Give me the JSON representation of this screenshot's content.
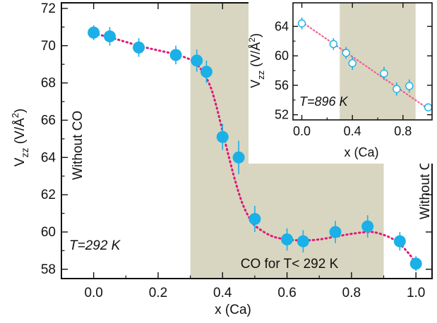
{
  "colors": {
    "shade": "#d8d6c0",
    "marker": "#1ab0e8",
    "fit": "#e0187a",
    "inset_fit": "#f06090",
    "axis": "#111111"
  },
  "chart_data": [
    {
      "type": "scatter",
      "xlabel": "x (Ca)",
      "ylabel_main": "V",
      "ylabel_sub": "zz",
      "ylabel_unit_pre": " (V/Å",
      "ylabel_unit_sup": "2",
      "ylabel_unit_post": ")",
      "xlim": [
        -0.1,
        1.05
      ],
      "ylim": [
        57.5,
        72.3
      ],
      "xticks": [
        0.0,
        0.2,
        0.4,
        0.6,
        0.8,
        1.0
      ],
      "xtick_labels": [
        "0.0",
        "0.2",
        "0.4",
        "0.6",
        "0.8",
        "1.0"
      ],
      "yticks": [
        58,
        60,
        62,
        64,
        66,
        68,
        70,
        72
      ],
      "ytick_labels": [
        "58",
        "60",
        "62",
        "64",
        "66",
        "68",
        "70",
        "72"
      ],
      "shaded_region": [
        0.3,
        0.9
      ],
      "points": [
        {
          "x": 0.0,
          "y": 70.7,
          "err": 0.4
        },
        {
          "x": 0.05,
          "y": 70.5,
          "err": 0.5
        },
        {
          "x": 0.14,
          "y": 69.9,
          "err": 0.5
        },
        {
          "x": 0.255,
          "y": 69.5,
          "err": 0.5
        },
        {
          "x": 0.32,
          "y": 69.2,
          "err": 0.6
        },
        {
          "x": 0.35,
          "y": 68.6,
          "err": 0.6
        },
        {
          "x": 0.4,
          "y": 65.1,
          "err": 0.7
        },
        {
          "x": 0.45,
          "y": 64.0,
          "err": 0.9
        },
        {
          "x": 0.5,
          "y": 60.7,
          "err": 0.7
        },
        {
          "x": 0.6,
          "y": 59.6,
          "err": 0.6
        },
        {
          "x": 0.65,
          "y": 59.5,
          "err": 0.6
        },
        {
          "x": 0.75,
          "y": 60.0,
          "err": 0.6
        },
        {
          "x": 0.85,
          "y": 60.3,
          "err": 0.6
        },
        {
          "x": 0.95,
          "y": 59.5,
          "err": 0.5
        },
        {
          "x": 1.0,
          "y": 58.3,
          "err": 0.4
        }
      ],
      "fit_curve": [
        [
          0.0,
          70.65
        ],
        [
          0.05,
          70.45
        ],
        [
          0.1,
          70.2
        ],
        [
          0.15,
          69.95
        ],
        [
          0.2,
          69.75
        ],
        [
          0.25,
          69.55
        ],
        [
          0.3,
          69.25
        ],
        [
          0.33,
          68.8
        ],
        [
          0.36,
          67.9
        ],
        [
          0.38,
          66.8
        ],
        [
          0.4,
          65.4
        ],
        [
          0.42,
          64.0
        ],
        [
          0.44,
          62.7
        ],
        [
          0.46,
          61.6
        ],
        [
          0.48,
          60.85
        ],
        [
          0.5,
          60.35
        ],
        [
          0.55,
          59.8
        ],
        [
          0.6,
          59.6
        ],
        [
          0.65,
          59.55
        ],
        [
          0.7,
          59.6
        ],
        [
          0.75,
          59.75
        ],
        [
          0.8,
          59.9
        ],
        [
          0.85,
          60.0
        ],
        [
          0.88,
          59.95
        ],
        [
          0.92,
          59.7
        ],
        [
          0.95,
          59.35
        ],
        [
          0.98,
          58.8
        ],
        [
          1.0,
          58.3
        ]
      ],
      "annotations": {
        "temperature": "T=292 K",
        "without_co_left": "Without CO",
        "without_co_right": "Without CO",
        "shaded_label": "CO for T< 292 K"
      }
    },
    {
      "type": "scatter",
      "xlabel": "x (Ca)",
      "ylabel_main": "V",
      "ylabel_sub": "zz",
      "ylabel_unit_pre": " (V/Å",
      "ylabel_unit_sup": "2",
      "ylabel_unit_post": ")",
      "xlim": [
        -0.07,
        1.03
      ],
      "ylim": [
        51.3,
        67.2
      ],
      "xticks": [
        0.0,
        0.4,
        0.8
      ],
      "xtick_labels": [
        "0.0",
        "0.4",
        "0.8"
      ],
      "yticks": [
        52,
        56,
        60,
        64
      ],
      "ytick_labels": [
        "52",
        "56",
        "60",
        "64"
      ],
      "shaded_region": [
        0.3,
        0.9
      ],
      "points": [
        {
          "x": 0.0,
          "y": 64.4,
          "err": 0.8
        },
        {
          "x": 0.25,
          "y": 61.6,
          "err": 0.8
        },
        {
          "x": 0.35,
          "y": 60.4,
          "err": 0.8
        },
        {
          "x": 0.4,
          "y": 59.0,
          "err": 0.9
        },
        {
          "x": 0.65,
          "y": 57.6,
          "err": 0.9
        },
        {
          "x": 0.75,
          "y": 55.5,
          "err": 0.9
        },
        {
          "x": 0.85,
          "y": 55.9,
          "err": 0.9
        },
        {
          "x": 1.0,
          "y": 53.0,
          "err": 0.5
        }
      ],
      "fit_line": [
        [
          0.0,
          64.6
        ],
        [
          1.0,
          52.8
        ]
      ],
      "annotations": {
        "temperature": "T=896 K"
      }
    }
  ]
}
